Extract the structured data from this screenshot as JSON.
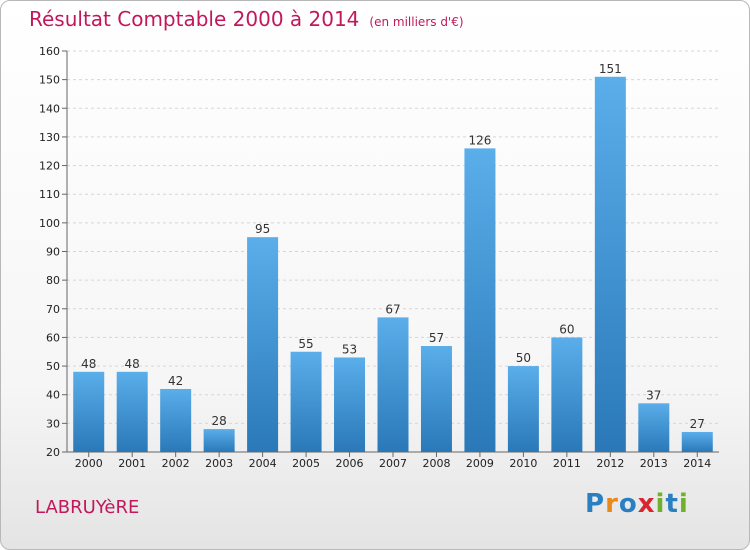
{
  "chart_data": {
    "type": "bar",
    "title": "Résultat Comptable 2000 à 2014",
    "subtitle": "(en milliers d'€)",
    "categories": [
      "2000",
      "2001",
      "2002",
      "2003",
      "2004",
      "2005",
      "2006",
      "2007",
      "2008",
      "2009",
      "2010",
      "2011",
      "2012",
      "2013",
      "2014"
    ],
    "values": [
      48,
      48,
      42,
      28,
      95,
      55,
      53,
      67,
      57,
      126,
      50,
      60,
      151,
      37,
      27
    ],
    "ylim": [
      20,
      160
    ],
    "yticks": [
      20,
      30,
      40,
      50,
      60,
      70,
      80,
      90,
      100,
      110,
      120,
      130,
      140,
      150,
      160
    ],
    "grid": true,
    "bar_color_top": "#5aaeea",
    "bar_color_bottom": "#2a78b8"
  },
  "footer": {
    "commune": "LABRUYèRE",
    "logo_letters": [
      {
        "ch": "P",
        "color": "#2a7fc1"
      },
      {
        "ch": "r",
        "color": "#e8891c"
      },
      {
        "ch": "o",
        "color": "#2a7fc1"
      },
      {
        "ch": "x",
        "color": "#d7262f"
      },
      {
        "ch": "i",
        "color": "#6fb02c"
      },
      {
        "ch": "t",
        "color": "#2a7fc1"
      },
      {
        "ch": "i",
        "color": "#6fb02c"
      }
    ]
  }
}
